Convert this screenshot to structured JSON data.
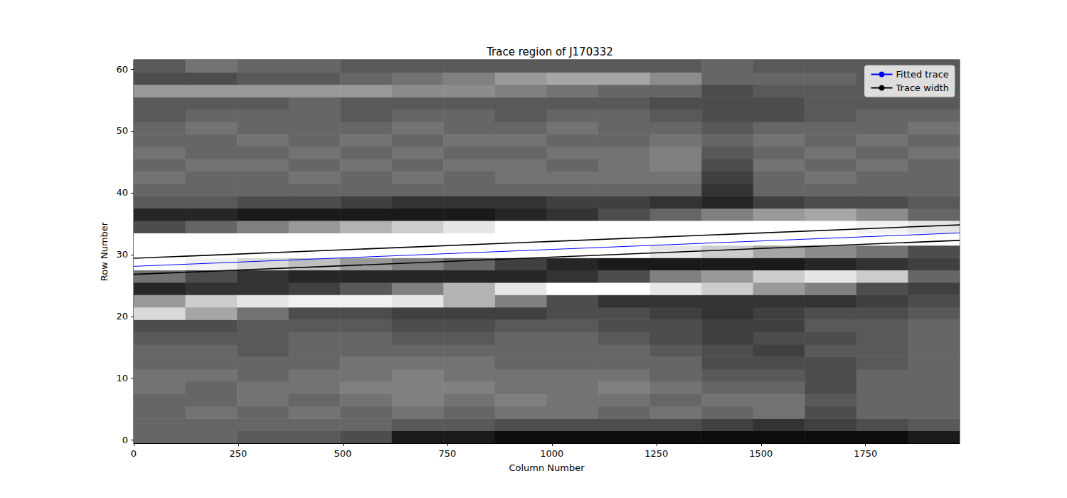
{
  "chart_data": {
    "type": "line",
    "title": "Trace region of J170332",
    "x_label": "Column Number",
    "y_label": "Row Number",
    "xlim": [
      0,
      1975
    ],
    "ylim": [
      -0.5,
      61.5
    ],
    "xticks": [
      0,
      250,
      500,
      750,
      1000,
      1250,
      1500,
      1750
    ],
    "yticks": [
      0,
      10,
      20,
      30,
      40,
      50,
      60
    ],
    "grid": false,
    "legend": "upper right",
    "x": [
      0,
      1975
    ],
    "series": [
      {
        "name": "Fitted trace",
        "color": "#0000ff",
        "line_style": "solid",
        "values": [
          28.1,
          33.5
        ]
      },
      {
        "name": "Trace width",
        "color": "#000000",
        "line_style": "solid",
        "values": [
          29.4,
          34.8
        ]
      },
      {
        "name": "Trace width",
        "color": "#000000",
        "line_style": "solid",
        "values": [
          26.8,
          32.3
        ]
      }
    ],
    "image": {
      "vmin": 0,
      "vmax": 1,
      "x_edges": [
        0,
        123.4,
        246.9,
        370.3,
        493.8,
        617.2,
        740.6,
        864.1,
        987.5,
        1110.9,
        1234.4,
        1357.8,
        1481.3,
        1604.7,
        1728.1,
        1851.6,
        1975
      ],
      "y_edges": [
        -0.5,
        1.5,
        3.5,
        5.5,
        7.5,
        9.5,
        11.5,
        13.5,
        15.5,
        17.5,
        19.5,
        21.5,
        23.5,
        25.5,
        27.5,
        29.5,
        31.5,
        33.5,
        35.5,
        37.5,
        39.5,
        41.5,
        43.5,
        45.5,
        47.5,
        49.5,
        51.5,
        53.5,
        55.5,
        57.5,
        59.5,
        61.5
      ],
      "cells": [
        [
          0.4,
          0.4,
          0.35,
          0.35,
          0.3,
          0.1,
          0.1,
          0.05,
          0.05,
          0.05,
          0.05,
          0.05,
          0.05,
          0.05,
          0.05,
          0.1
        ],
        [
          0.4,
          0.4,
          0.4,
          0.4,
          0.4,
          0.35,
          0.35,
          0.3,
          0.3,
          0.3,
          0.3,
          0.25,
          0.2,
          0.25,
          0.3,
          0.35
        ],
        [
          0.4,
          0.45,
          0.4,
          0.45,
          0.4,
          0.45,
          0.4,
          0.45,
          0.45,
          0.4,
          0.45,
          0.4,
          0.45,
          0.3,
          0.4,
          0.4
        ],
        [
          0.4,
          0.4,
          0.45,
          0.4,
          0.45,
          0.5,
          0.45,
          0.5,
          0.45,
          0.45,
          0.4,
          0.45,
          0.45,
          0.35,
          0.4,
          0.4
        ],
        [
          0.45,
          0.4,
          0.45,
          0.45,
          0.5,
          0.5,
          0.5,
          0.45,
          0.45,
          0.5,
          0.45,
          0.4,
          0.4,
          0.3,
          0.4,
          0.4
        ],
        [
          0.45,
          0.45,
          0.4,
          0.45,
          0.45,
          0.5,
          0.45,
          0.45,
          0.45,
          0.45,
          0.4,
          0.35,
          0.35,
          0.3,
          0.4,
          0.4
        ],
        [
          0.4,
          0.4,
          0.4,
          0.4,
          0.45,
          0.45,
          0.45,
          0.4,
          0.4,
          0.4,
          0.4,
          0.3,
          0.3,
          0.3,
          0.35,
          0.4
        ],
        [
          0.4,
          0.4,
          0.35,
          0.4,
          0.4,
          0.4,
          0.4,
          0.4,
          0.4,
          0.4,
          0.35,
          0.3,
          0.25,
          0.35,
          0.35,
          0.4
        ],
        [
          0.35,
          0.35,
          0.35,
          0.4,
          0.4,
          0.35,
          0.35,
          0.4,
          0.4,
          0.35,
          0.3,
          0.25,
          0.3,
          0.3,
          0.35,
          0.4
        ],
        [
          0.3,
          0.3,
          0.35,
          0.35,
          0.35,
          0.3,
          0.3,
          0.35,
          0.35,
          0.3,
          0.3,
          0.25,
          0.25,
          0.35,
          0.35,
          0.4
        ],
        [
          0.85,
          0.65,
          0.45,
          0.3,
          0.3,
          0.25,
          0.25,
          0.25,
          0.3,
          0.3,
          0.25,
          0.2,
          0.25,
          0.3,
          0.3,
          0.35
        ],
        [
          0.6,
          0.8,
          0.9,
          0.95,
          0.95,
          0.9,
          0.7,
          0.5,
          0.3,
          0.2,
          0.2,
          0.2,
          0.2,
          0.2,
          0.25,
          0.3
        ],
        [
          0.15,
          0.2,
          0.2,
          0.25,
          0.35,
          0.5,
          0.7,
          0.9,
          1,
          1,
          0.9,
          0.8,
          0.6,
          0.5,
          0.3,
          0.25
        ],
        [
          0.45,
          0.3,
          0.2,
          0.15,
          0.15,
          0.15,
          0.15,
          0.15,
          0.2,
          0.3,
          0.5,
          0.6,
          0.8,
          0.9,
          0.8,
          0.4
        ],
        [
          1,
          0.95,
          0.85,
          0.75,
          0.6,
          0.5,
          0.4,
          0.25,
          0.15,
          0.1,
          0.1,
          0.1,
          0.1,
          0.15,
          0.2,
          0.25
        ],
        [
          1,
          1,
          1,
          1,
          1,
          1,
          1,
          1,
          1,
          1,
          0.9,
          0.8,
          0.65,
          0.55,
          0.45,
          0.3
        ],
        [
          1,
          1,
          1,
          1,
          1,
          1,
          1,
          1,
          1,
          1,
          1,
          1,
          1,
          1,
          1,
          1
        ],
        [
          0.3,
          0.4,
          0.5,
          0.6,
          0.7,
          0.8,
          0.9,
          1,
          1,
          1,
          1,
          1,
          1,
          1,
          0.95,
          0.9
        ],
        [
          0.15,
          0.15,
          0.1,
          0.1,
          0.1,
          0.1,
          0.1,
          0.15,
          0.2,
          0.3,
          0.4,
          0.5,
          0.6,
          0.65,
          0.55,
          0.4
        ],
        [
          0.35,
          0.35,
          0.3,
          0.3,
          0.25,
          0.2,
          0.2,
          0.2,
          0.25,
          0.25,
          0.2,
          0.15,
          0.25,
          0.3,
          0.3,
          0.35
        ],
        [
          0.4,
          0.4,
          0.4,
          0.4,
          0.4,
          0.4,
          0.4,
          0.4,
          0.4,
          0.4,
          0.4,
          0.2,
          0.4,
          0.4,
          0.4,
          0.4
        ],
        [
          0.45,
          0.4,
          0.4,
          0.45,
          0.4,
          0.45,
          0.4,
          0.45,
          0.45,
          0.45,
          0.45,
          0.25,
          0.4,
          0.45,
          0.4,
          0.4
        ],
        [
          0.4,
          0.45,
          0.45,
          0.4,
          0.45,
          0.4,
          0.45,
          0.45,
          0.4,
          0.45,
          0.5,
          0.3,
          0.45,
          0.4,
          0.45,
          0.4
        ],
        [
          0.45,
          0.4,
          0.4,
          0.45,
          0.4,
          0.45,
          0.4,
          0.4,
          0.45,
          0.45,
          0.5,
          0.35,
          0.4,
          0.45,
          0.4,
          0.45
        ],
        [
          0.4,
          0.4,
          0.45,
          0.4,
          0.45,
          0.4,
          0.45,
          0.45,
          0.4,
          0.4,
          0.45,
          0.4,
          0.45,
          0.4,
          0.45,
          0.4
        ],
        [
          0.4,
          0.45,
          0.4,
          0.4,
          0.4,
          0.45,
          0.4,
          0.4,
          0.45,
          0.4,
          0.4,
          0.35,
          0.4,
          0.4,
          0.4,
          0.45
        ],
        [
          0.35,
          0.4,
          0.4,
          0.4,
          0.35,
          0.4,
          0.4,
          0.35,
          0.4,
          0.4,
          0.35,
          0.3,
          0.3,
          0.35,
          0.4,
          0.4
        ],
        [
          0.35,
          0.35,
          0.35,
          0.4,
          0.35,
          0.35,
          0.35,
          0.35,
          0.35,
          0.35,
          0.3,
          0.3,
          0.3,
          0.35,
          0.35,
          0.35
        ],
        [
          0.6,
          0.6,
          0.6,
          0.6,
          0.6,
          0.55,
          0.55,
          0.5,
          0.45,
          0.4,
          0.4,
          0.3,
          0.35,
          0.35,
          0.35,
          0.35
        ],
        [
          0.3,
          0.3,
          0.35,
          0.35,
          0.4,
          0.45,
          0.5,
          0.6,
          0.65,
          0.65,
          0.55,
          0.4,
          0.4,
          0.4,
          0.35,
          0.35
        ],
        [
          0.35,
          0.45,
          0.4,
          0.4,
          0.35,
          0.35,
          0.35,
          0.35,
          0.35,
          0.35,
          0.35,
          0.4,
          0.35,
          0.35,
          0.35,
          0.35
        ]
      ]
    }
  }
}
